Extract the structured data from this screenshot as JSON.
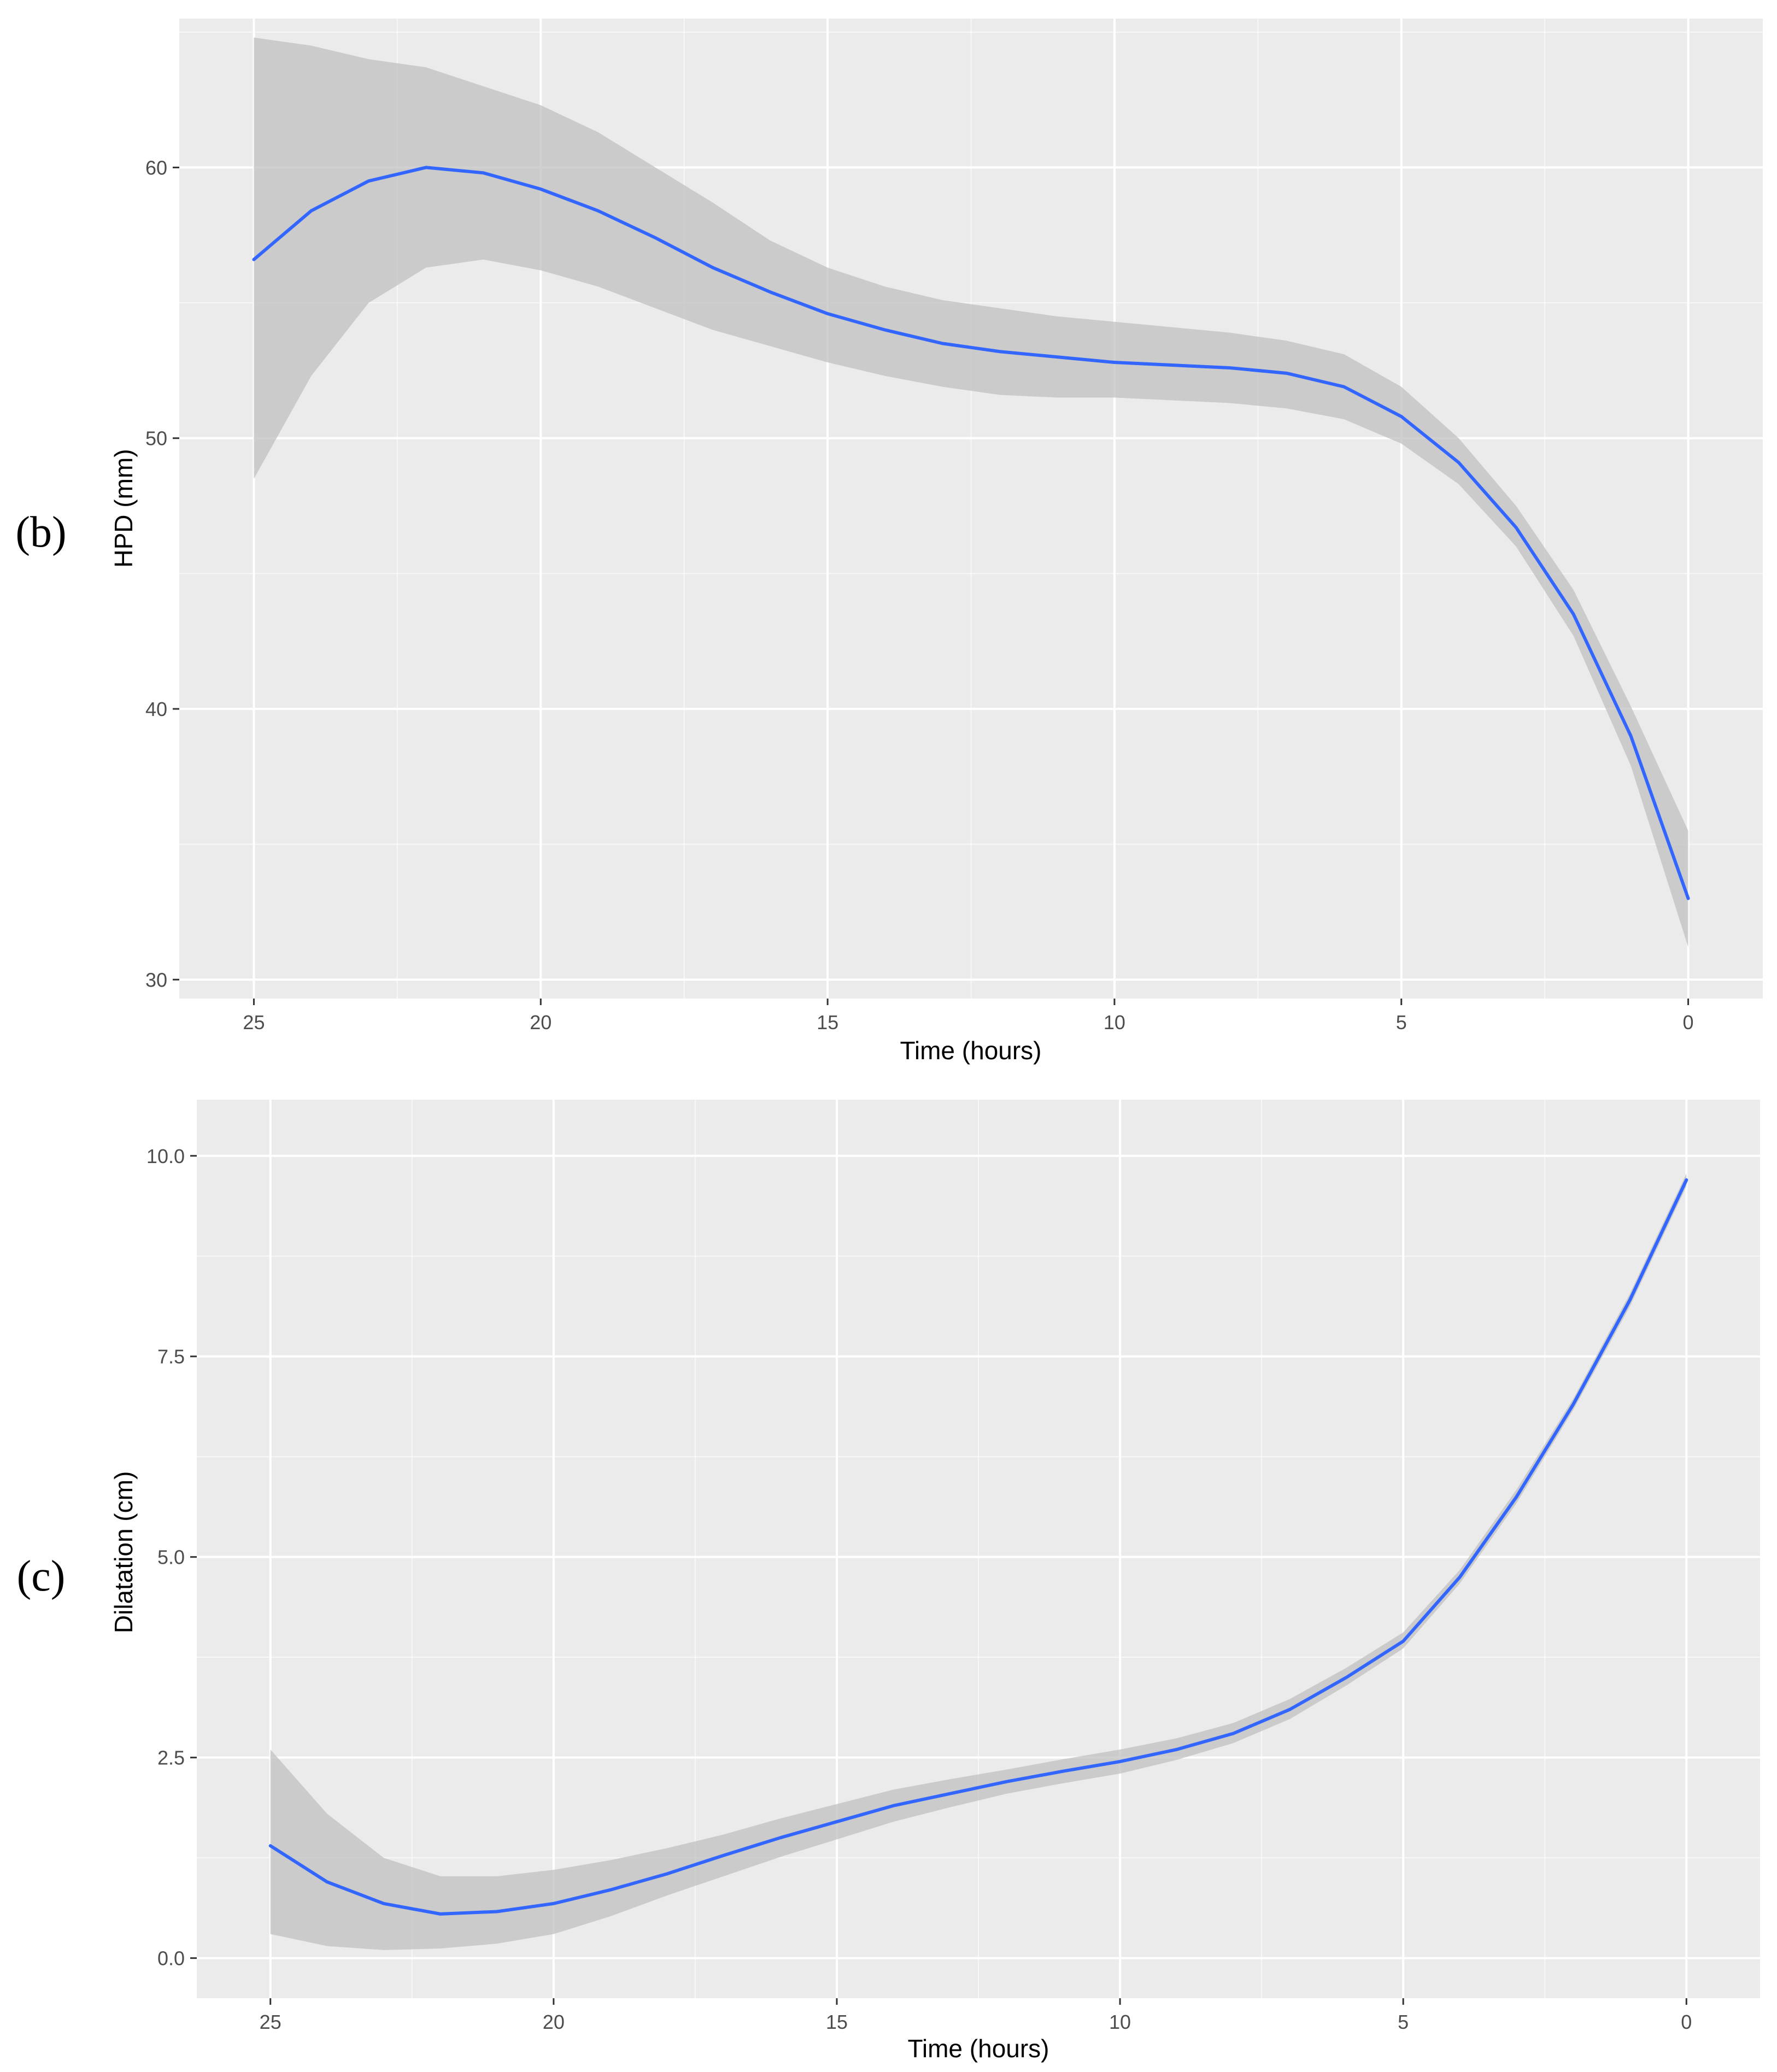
{
  "colors": {
    "panel_background": "#ebebeb",
    "grid": "#ffffff",
    "confidence_band": "#bebebe",
    "fit_line": "#3366ff"
  },
  "chart_data": [
    {
      "type": "line",
      "panel_label": "(b)",
      "xlabel": "Time (hours)",
      "ylabel": "HPD (mm)",
      "x_reversed": true,
      "xlim": [
        -1.3,
        26.3
      ],
      "ylim": [
        29.3,
        65.5
      ],
      "xticks": [
        25,
        20,
        15,
        10,
        5,
        0
      ],
      "xtick_labels": [
        "25",
        "20",
        "15",
        "10",
        "5",
        "0"
      ],
      "yticks": [
        30,
        40,
        50,
        60
      ],
      "ytick_labels": [
        "30",
        "40",
        "50",
        "60"
      ],
      "grid": true,
      "legend": "none",
      "series": [
        {
          "x": [
            25,
            24,
            23,
            22,
            21,
            20,
            19,
            18,
            17,
            16,
            15,
            14,
            13,
            12,
            11,
            10,
            9,
            8,
            7,
            6,
            5,
            4,
            3,
            2,
            1,
            0
          ],
          "y": [
            56.6,
            58.4,
            59.5,
            60.0,
            59.8,
            59.2,
            58.4,
            57.4,
            56.3,
            55.4,
            54.6,
            54.0,
            53.5,
            53.2,
            53.0,
            52.8,
            52.7,
            52.6,
            52.4,
            51.9,
            50.8,
            49.1,
            46.7,
            43.5,
            39.0,
            33.0
          ],
          "lower": [
            48.5,
            52.3,
            55.0,
            56.3,
            56.6,
            56.2,
            55.6,
            54.8,
            54.0,
            53.4,
            52.8,
            52.3,
            51.9,
            51.6,
            51.5,
            51.5,
            51.4,
            51.3,
            51.1,
            50.7,
            49.8,
            48.3,
            46.0,
            42.7,
            37.9,
            31.2
          ],
          "upper": [
            64.8,
            64.5,
            64.0,
            63.7,
            63.0,
            62.3,
            61.3,
            60.0,
            58.7,
            57.3,
            56.3,
            55.6,
            55.1,
            54.8,
            54.5,
            54.3,
            54.1,
            53.9,
            53.6,
            53.1,
            51.9,
            50.0,
            47.5,
            44.4,
            40.1,
            35.5
          ]
        }
      ]
    },
    {
      "type": "line",
      "panel_label": "(c)",
      "xlabel": "Time (hours)",
      "ylabel": "Dilatation (cm)",
      "x_reversed": true,
      "xlim": [
        -1.3,
        26.3
      ],
      "ylim": [
        -0.5,
        10.7
      ],
      "xticks": [
        25,
        20,
        15,
        10,
        5,
        0
      ],
      "xtick_labels": [
        "25",
        "20",
        "15",
        "10",
        "5",
        "0"
      ],
      "yticks": [
        0,
        2.5,
        5,
        7.5,
        10
      ],
      "ytick_labels": [
        "0.0",
        "2.5",
        "5.0",
        "7.5",
        "10.0"
      ],
      "grid": true,
      "legend": "none",
      "series": [
        {
          "x": [
            25,
            24,
            23,
            22,
            21,
            20,
            19,
            18,
            17,
            16,
            15,
            14,
            13,
            12,
            11,
            10,
            9,
            8,
            7,
            6,
            5,
            4,
            3,
            2,
            1,
            0
          ],
          "y": [
            1.4,
            0.95,
            0.68,
            0.55,
            0.58,
            0.68,
            0.85,
            1.05,
            1.28,
            1.5,
            1.7,
            1.9,
            2.05,
            2.2,
            2.33,
            2.45,
            2.6,
            2.8,
            3.1,
            3.5,
            3.95,
            4.75,
            5.75,
            6.9,
            8.2,
            9.7
          ],
          "lower": [
            0.3,
            0.15,
            0.1,
            0.12,
            0.18,
            0.3,
            0.52,
            0.78,
            1.02,
            1.26,
            1.48,
            1.7,
            1.88,
            2.05,
            2.18,
            2.3,
            2.47,
            2.68,
            2.98,
            3.4,
            3.86,
            4.67,
            5.67,
            6.83,
            8.12,
            9.62
          ],
          "upper": [
            2.6,
            1.8,
            1.25,
            1.02,
            1.02,
            1.1,
            1.22,
            1.37,
            1.54,
            1.74,
            1.92,
            2.1,
            2.23,
            2.35,
            2.48,
            2.6,
            2.74,
            2.93,
            3.23,
            3.62,
            4.06,
            4.84,
            5.84,
            6.97,
            8.28,
            9.78
          ]
        }
      ]
    }
  ]
}
